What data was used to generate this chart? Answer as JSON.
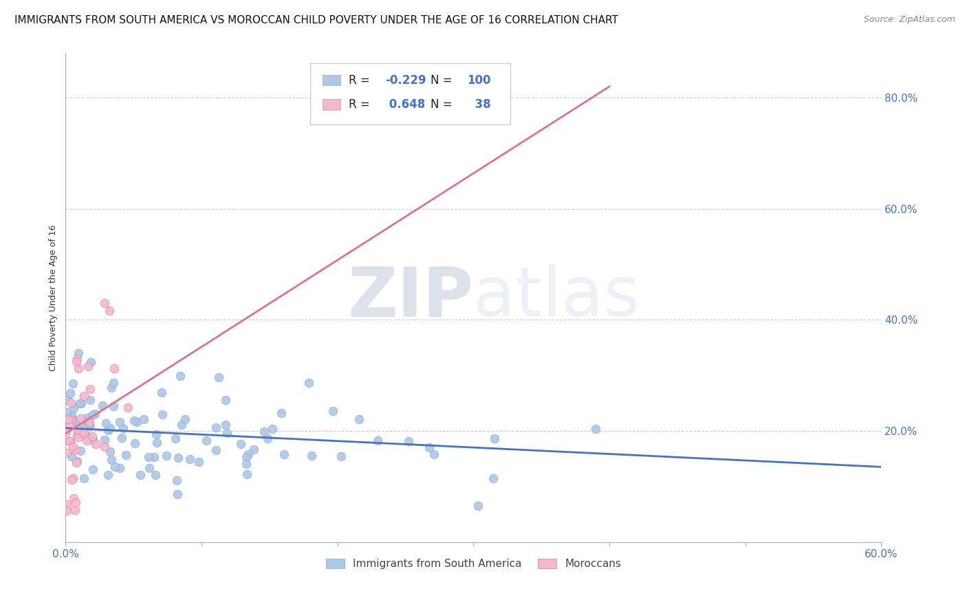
{
  "title": "IMMIGRANTS FROM SOUTH AMERICA VS MOROCCAN CHILD POVERTY UNDER THE AGE OF 16 CORRELATION CHART",
  "source": "Source: ZipAtlas.com",
  "ylabel": "Child Poverty Under the Age of 16",
  "xlim": [
    0.0,
    0.6
  ],
  "ylim": [
    0.0,
    0.88
  ],
  "xticks": [
    0.0,
    0.1,
    0.2,
    0.3,
    0.4,
    0.5,
    0.6
  ],
  "xticklabels": [
    "0.0%",
    "",
    "",
    "",
    "",
    "",
    "60.0%"
  ],
  "yticks": [
    0.2,
    0.4,
    0.6,
    0.8
  ],
  "yticklabels": [
    "20.0%",
    "40.0%",
    "60.0%",
    "80.0%"
  ],
  "blue_color": "#aec6e8",
  "blue_edge_color": "#7bafd4",
  "blue_line_color": "#4472c4",
  "pink_color": "#f4b8cc",
  "pink_edge_color": "#e87898",
  "pink_line_color": "#e07090",
  "R_blue": -0.229,
  "N_blue": 100,
  "R_pink": 0.648,
  "N_pink": 38,
  "watermark_zip": "ZIP",
  "watermark_atlas": "atlas",
  "legend_label_blue": "Immigrants from South America",
  "legend_label_pink": "Moroccans",
  "background_color": "#ffffff",
  "grid_color": "#cccccc",
  "title_fontsize": 11,
  "axis_label_fontsize": 9,
  "tick_fontsize": 11,
  "blue_seed": 42,
  "pink_seed": 7,
  "blue_line_x0": 0.0,
  "blue_line_x1": 0.6,
  "blue_line_y0": 0.205,
  "blue_line_y1": 0.135,
  "pink_line_x0": 0.0,
  "pink_line_x1": 0.4,
  "pink_line_y0": 0.195,
  "pink_line_y1": 0.82
}
